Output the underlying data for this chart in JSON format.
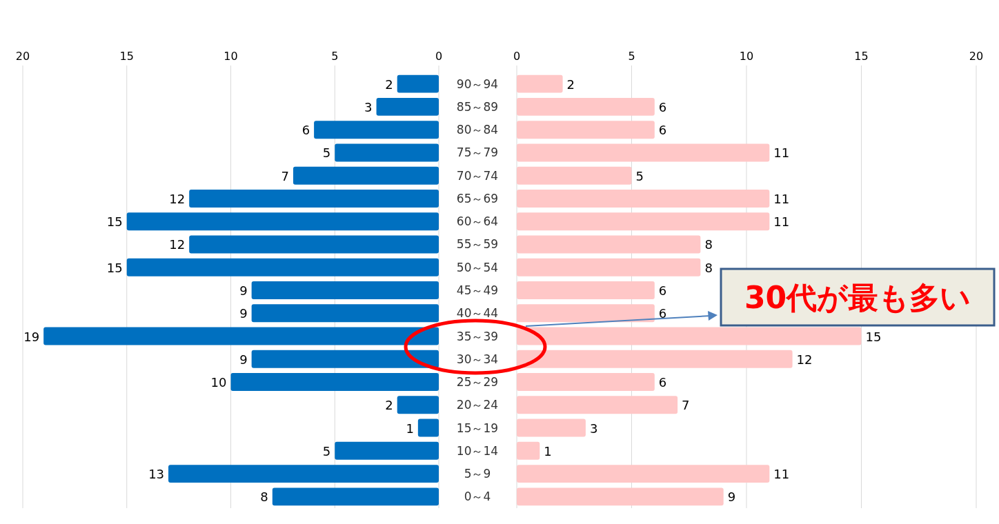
{
  "chart_data": [
    {
      "type": "bar",
      "orientation": "horizontal",
      "categories": [
        "90～94",
        "85～89",
        "80～84",
        "75～79",
        "70～74",
        "65～69",
        "60～64",
        "55～59",
        "50～54",
        "45～49",
        "40～44",
        "35～39",
        "30～34",
        "25～29",
        "20～24",
        "15～19",
        "10～14",
        "5～9",
        "0～4"
      ],
      "values": [
        2,
        3,
        6,
        5,
        7,
        12,
        15,
        12,
        15,
        9,
        9,
        19,
        9,
        10,
        2,
        1,
        5,
        13,
        8
      ],
      "color": "#0070c0",
      "xlim": [
        20,
        0
      ],
      "xticks": [
        20,
        15,
        10,
        5,
        0
      ],
      "data_labels": true,
      "grid": "x"
    },
    {
      "type": "bar",
      "orientation": "horizontal",
      "values": [
        2,
        6,
        6,
        11,
        5,
        11,
        11,
        8,
        8,
        6,
        6,
        15,
        12,
        6,
        7,
        3,
        1,
        11,
        9
      ],
      "color": "#ffc7c7",
      "xlim": [
        0,
        20
      ],
      "xticks": [
        0,
        5,
        10,
        15,
        20
      ],
      "data_labels": true,
      "grid": "x",
      "tick_labels": "x",
      "annotations": [
        "30代が最も多い"
      ]
    }
  ]
}
